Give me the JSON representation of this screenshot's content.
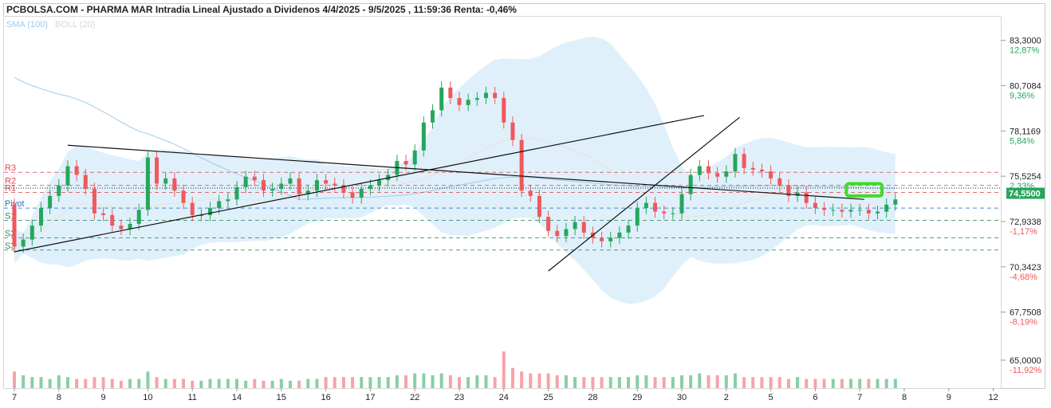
{
  "header": {
    "title": "PCBOLSA.COM - PHARMA MAR Intradia Lineal Ajustado a Dividenos 4/4/2025 - 9/5/2025 , 11:59:36 Renta: -0,46%",
    "legend": [
      {
        "label": "SMA (100)",
        "color": "#9ecbea"
      },
      {
        "label": "BOLL (20)",
        "color": "#cfd8dc"
      }
    ]
  },
  "colors": {
    "up": "#26a65b",
    "down": "#f0585c",
    "bollinger": "#dbeefb",
    "sma": "#9ecbea",
    "trendline": "#111111",
    "highlight": "#3ddc27",
    "resistance": "#e0484d",
    "support": "#2a8a5a",
    "pivot": "#1e6fd0",
    "current_price_bg": "#26a65b"
  },
  "chart_data": {
    "type": "candlestick",
    "title": "PHARMA MAR Intradia Lineal Ajustado a Dividenos 4/4/2025 - 9/5/2025",
    "reference_price": 74.89,
    "ylim": [
      63.4,
      84.7
    ],
    "y_ticks": [
      {
        "price": "83,3000",
        "pct": "12,87%",
        "value": 83.3,
        "sign": "pos"
      },
      {
        "price": "80,7084",
        "pct": "9,36%",
        "value": 80.7084,
        "sign": "pos"
      },
      {
        "price": "78,1169",
        "pct": "5,84%",
        "value": 78.1169,
        "sign": "pos"
      },
      {
        "price": "75,5254",
        "pct": "2,33%",
        "value": 75.5254,
        "sign": "pos"
      },
      {
        "price": "72,9338",
        "pct": "-1,17%",
        "value": 72.9338,
        "sign": "neg"
      },
      {
        "price": "70,3423",
        "pct": "-4,68%",
        "value": 70.3423,
        "sign": "neg"
      },
      {
        "price": "67,7508",
        "pct": "-8,19%",
        "value": 67.7508,
        "sign": "neg"
      },
      {
        "price": "65,0000",
        "pct": "-11,92%",
        "value": 65.0,
        "sign": "neg"
      }
    ],
    "x_ticks": [
      "7",
      "8",
      "9",
      "10",
      "11",
      "14",
      "15",
      "16",
      "17",
      "22",
      "23",
      "24",
      "25",
      "28",
      "29",
      "30",
      "2",
      "5",
      "6",
      "7",
      "8",
      "9",
      "12"
    ],
    "current_price": {
      "label": "74,5500",
      "value": 74.55
    },
    "levels": [
      {
        "name": "R3",
        "value": 75.75,
        "kind": "resistance"
      },
      {
        "name": "R2",
        "value": 75.0,
        "kind": "resistance"
      },
      {
        "name": "R1",
        "value": 74.6,
        "kind": "resistance"
      },
      {
        "name": "Pivot",
        "value": 73.7,
        "kind": "pivot"
      },
      {
        "name": "S1",
        "value": 73.0,
        "kind": "support"
      },
      {
        "name": "S2",
        "value": 72.0,
        "kind": "support"
      },
      {
        "name": "S3",
        "value": 71.3,
        "kind": "support"
      }
    ],
    "dotted_line": 74.85,
    "trendlines": [
      {
        "from": [
          0.0,
          71.2
        ],
        "to": [
          31.0,
          79.0
        ]
      },
      {
        "from": [
          2.4,
          77.3
        ],
        "to": [
          38.2,
          74.2
        ]
      },
      {
        "from": [
          24.0,
          70.1
        ],
        "to": [
          32.6,
          78.9
        ]
      }
    ],
    "highlight_box": {
      "x0": 37.4,
      "x1": 39.0,
      "y_low": 74.4,
      "y_high": 75.1
    },
    "closes": [
      71.5,
      71.9,
      72.7,
      73.7,
      74.4,
      75.0,
      76.1,
      75.6,
      74.8,
      73.4,
      73.3,
      72.7,
      72.5,
      72.8,
      73.6,
      76.6,
      75.1,
      75.4,
      74.7,
      74.0,
      73.3,
      73.3,
      73.7,
      74.1,
      74.2,
      74.9,
      75.5,
      75.3,
      74.7,
      74.8,
      75.1,
      75.4,
      74.5,
      74.7,
      75.3,
      75.1,
      75.0,
      74.6,
      74.3,
      74.8,
      75.0,
      75.3,
      75.6,
      76.4,
      76.2,
      77.0,
      78.6,
      79.3,
      80.6,
      80.0,
      79.6,
      79.9,
      80.0,
      80.3,
      80.0,
      78.6,
      77.6,
      74.7,
      74.4,
      73.2,
      72.4,
      72.1,
      72.5,
      72.9,
      72.3,
      72.0,
      71.8,
      72.0,
      72.3,
      72.7,
      73.7,
      74.0,
      73.5,
      73.4,
      73.4,
      74.5,
      75.6,
      76.1,
      75.7,
      75.5,
      75.8,
      76.8,
      76.0,
      75.9,
      75.8,
      75.4,
      75.0,
      74.4,
      74.6,
      74.0,
      73.7,
      73.6,
      73.6,
      73.5,
      73.6,
      73.6,
      73.4,
      73.5,
      73.9,
      74.2
    ],
    "volumes": [
      0.9,
      0.7,
      0.6,
      0.6,
      0.5,
      0.7,
      0.6,
      0.5,
      0.5,
      0.6,
      0.6,
      0.5,
      0.4,
      0.5,
      0.5,
      0.9,
      0.6,
      0.5,
      0.5,
      0.5,
      0.4,
      0.4,
      0.5,
      0.5,
      0.5,
      0.5,
      0.4,
      0.5,
      0.4,
      0.4,
      0.5,
      0.4,
      0.4,
      0.5,
      0.5,
      0.6,
      0.6,
      0.6,
      0.6,
      0.6,
      0.6,
      0.6,
      0.6,
      0.7,
      0.7,
      0.8,
      0.8,
      0.7,
      0.8,
      0.7,
      0.6,
      0.6,
      0.7,
      0.7,
      0.6,
      2.0,
      1.1,
      0.9,
      0.8,
      0.8,
      0.8,
      0.7,
      0.7,
      0.6,
      0.6,
      0.6,
      0.6,
      0.6,
      0.6,
      0.6,
      0.7,
      0.7,
      0.6,
      0.6,
      0.6,
      0.7,
      0.7,
      0.8,
      0.7,
      0.7,
      0.7,
      0.8,
      0.6,
      0.6,
      0.6,
      0.6,
      0.6,
      0.5,
      0.6,
      0.5,
      0.5,
      0.5,
      0.5,
      0.5,
      0.5,
      0.5,
      0.5,
      0.5,
      0.5,
      0.5
    ]
  }
}
